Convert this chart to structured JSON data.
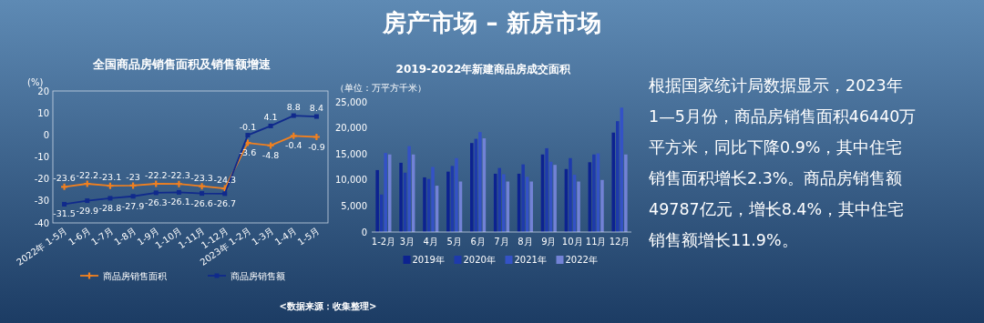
{
  "chart_data": [
    {
      "type": "line",
      "title": "全国商品房销售面积及销售额增速",
      "ylabel": "(%)",
      "categories": [
        "2022年 1-5月",
        "1-6月",
        "1-7月",
        "1-8月",
        "1-9月",
        "1-10月",
        "1-11月",
        "1-12月",
        "2023年 1-2月",
        "1-3月",
        "1-4月",
        "1-5月"
      ],
      "series": [
        {
          "name": "商品房销售面积",
          "color": "#f08020",
          "marker": "cross",
          "values": [
            -23.6,
            -22.2,
            -23.1,
            -23.0,
            -22.2,
            -22.3,
            -23.3,
            -24.3,
            -3.6,
            -4.8,
            -0.4,
            -0.9
          ]
        },
        {
          "name": "商品房销售额",
          "color": "#102a8c",
          "marker": "square",
          "values": [
            -31.5,
            -29.9,
            -28.8,
            -27.9,
            -26.3,
            -26.1,
            -26.6,
            -26.7,
            -0.1,
            4.1,
            8.8,
            8.4
          ]
        }
      ],
      "ylim": [
        -40,
        20
      ],
      "yticks": [
        -40,
        -30,
        -20,
        -10,
        0,
        10,
        20
      ],
      "data_labels": true,
      "legend": "bottom",
      "grid": false
    },
    {
      "type": "bar",
      "title": "2019-2022年新建商品房成交面积",
      "ylabel": "（单位：万平方千米）",
      "categories": [
        "1-2月",
        "3月",
        "4月",
        "5月",
        "6月",
        "7月",
        "8月",
        "9月",
        "10月",
        "11月",
        "12月"
      ],
      "series": [
        {
          "name": "2019年",
          "color": "#0c2290",
          "values": [
            11900,
            13300,
            10500,
            11600,
            17100,
            11200,
            11200,
            14900,
            12100,
            13400,
            19100
          ]
        },
        {
          "name": "2020年",
          "color": "#1e3aac",
          "values": [
            7200,
            11400,
            10200,
            12700,
            17900,
            12300,
            13000,
            16100,
            14200,
            14900,
            21300
          ]
        },
        {
          "name": "2021年",
          "color": "#3452c6",
          "values": [
            15200,
            16500,
            12500,
            14200,
            19200,
            11100,
            10600,
            13500,
            11000,
            15100,
            23900
          ]
        },
        {
          "name": "2022年",
          "color": "#7282d6",
          "values": [
            14900,
            14900,
            8900,
            9700,
            18000,
            9700,
            9700,
            12900,
            9700,
            10000,
            14900
          ]
        }
      ],
      "ylim": [
        0,
        25000
      ],
      "yticks": [
        {
          "value": 0,
          "label": "0"
        },
        {
          "value": 5000,
          "label": "5,000"
        },
        {
          "value": 10000,
          "label": "10,000"
        },
        {
          "value": 15000,
          "label": "15,000"
        },
        {
          "value": 20000,
          "label": "20,000"
        },
        {
          "value": 25000,
          "label": "25,000"
        }
      ],
      "legend": "bottom",
      "grid": false
    },
    {
      "type": "other",
      "title": "房产市场 – 新房市场",
      "annotations": [
        "根据国家统计局数据显示，2023年",
        "1—5月份，商品房销售面积46440万",
        "平方米，同比下降0.9%，其中住宅",
        "销售面积增长2.3%。商品房销售额",
        "49787亿元，增长8.4%，其中住宅",
        "销售额增长11.9%。",
        "<数据来源：收集整理>"
      ]
    }
  ]
}
